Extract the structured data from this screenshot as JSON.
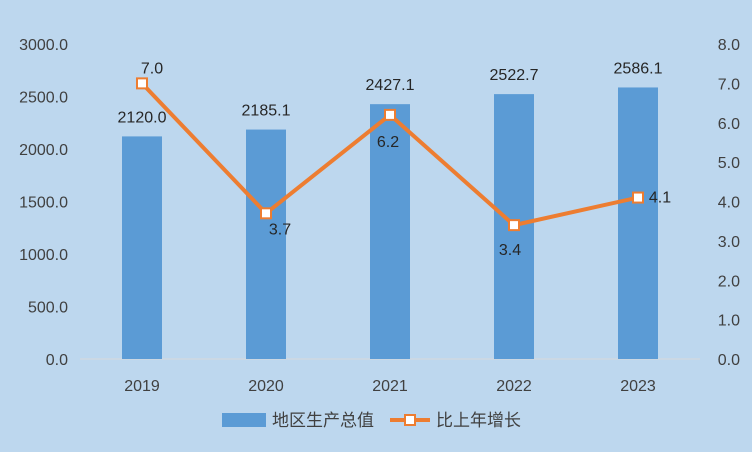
{
  "chart_data": {
    "type": "bar",
    "categories": [
      "2019",
      "2020",
      "2021",
      "2022",
      "2023"
    ],
    "series": [
      {
        "name": "地区生产总值",
        "type": "bar",
        "axis": "left",
        "values": [
          2120.0,
          2185.1,
          2427.1,
          2522.7,
          2586.1
        ],
        "labels": [
          "2120.0",
          "2185.1",
          "2427.1",
          "2522.7",
          "2586.1"
        ],
        "color": "#5b9bd5"
      },
      {
        "name": "比上年增长",
        "type": "line",
        "axis": "right",
        "values": [
          7.0,
          3.7,
          6.2,
          3.4,
          4.1
        ],
        "labels": [
          "7.0",
          "3.7",
          "6.2",
          "3.4",
          "4.1"
        ],
        "color": "#ed7d31"
      }
    ],
    "y_left": {
      "ylim": [
        0,
        3000
      ],
      "ticks": [
        "0.0",
        "500.0",
        "1000.0",
        "1500.0",
        "2000.0",
        "2500.0",
        "3000.0"
      ]
    },
    "y_right": {
      "ylim": [
        0,
        8
      ],
      "ticks": [
        "0.0",
        "1.0",
        "2.0",
        "3.0",
        "4.0",
        "5.0",
        "6.0",
        "7.0",
        "8.0"
      ]
    },
    "grid": false,
    "legend": "bottom",
    "background": "#bdd7ee"
  }
}
